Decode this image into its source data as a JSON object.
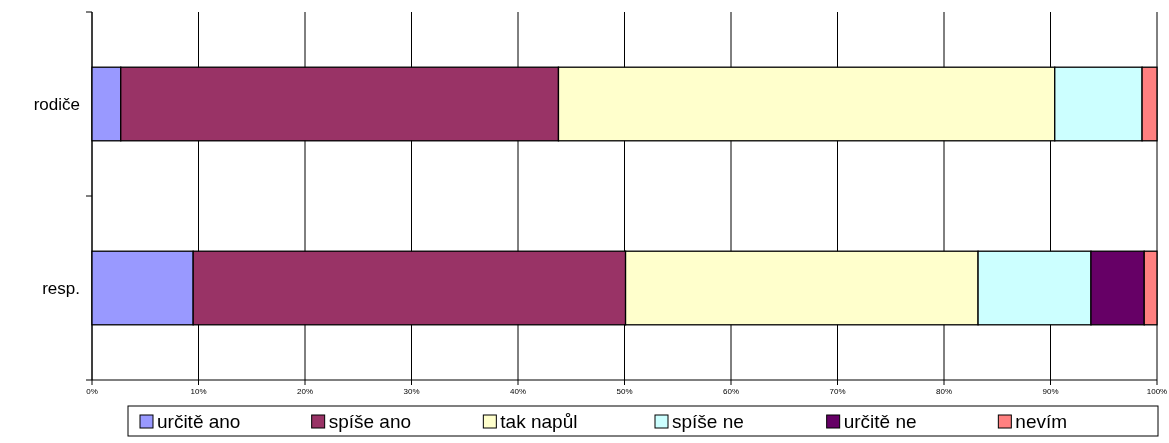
{
  "chart_data": {
    "type": "bar",
    "orientation": "horizontal",
    "stacked": true,
    "categories": [
      "rodiče",
      "resp."
    ],
    "series": [
      {
        "name": "určitě ano",
        "color": "#9999ff",
        "values": [
          2.7,
          9.5
        ]
      },
      {
        "name": "spíše ano",
        "color": "#993366",
        "values": [
          41.1,
          40.6
        ]
      },
      {
        "name": "tak napůl",
        "color": "#ffffcc",
        "values": [
          46.6,
          33.1
        ]
      },
      {
        "name": "spíše ne",
        "color": "#ccffff",
        "values": [
          8.2,
          10.6
        ]
      },
      {
        "name": "určitě ne",
        "color": "#660066",
        "values": [
          0,
          5.0
        ]
      },
      {
        "name": "nevím",
        "color": "#ff8080",
        "values": [
          1.4,
          1.2
        ]
      }
    ],
    "xlim": [
      0,
      100
    ],
    "xticks": [
      {
        "value": 0,
        "label": "0%"
      },
      {
        "value": 10,
        "label": "10%"
      },
      {
        "value": 20,
        "label": "20%"
      },
      {
        "value": 30,
        "label": "30%"
      },
      {
        "value": 40,
        "label": "40%"
      },
      {
        "value": 50,
        "label": "50%"
      },
      {
        "value": 60,
        "label": "60%"
      },
      {
        "value": 70,
        "label": "70%"
      },
      {
        "value": 80,
        "label": "80%"
      },
      {
        "value": 90,
        "label": "90%"
      },
      {
        "value": 100,
        "label": "100%"
      }
    ],
    "grid": "x",
    "legend": "bottom"
  }
}
